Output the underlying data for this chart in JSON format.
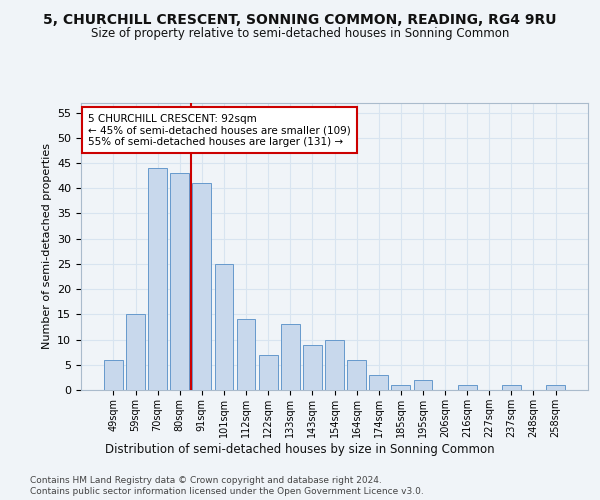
{
  "title": "5, CHURCHILL CRESCENT, SONNING COMMON, READING, RG4 9RU",
  "subtitle": "Size of property relative to semi-detached houses in Sonning Common",
  "xlabel": "Distribution of semi-detached houses by size in Sonning Common",
  "ylabel": "Number of semi-detached properties",
  "categories": [
    "49sqm",
    "59sqm",
    "70sqm",
    "80sqm",
    "91sqm",
    "101sqm",
    "112sqm",
    "122sqm",
    "133sqm",
    "143sqm",
    "154sqm",
    "164sqm",
    "174sqm",
    "185sqm",
    "195sqm",
    "206sqm",
    "216sqm",
    "227sqm",
    "237sqm",
    "248sqm",
    "258sqm"
  ],
  "values": [
    6,
    15,
    44,
    43,
    41,
    25,
    14,
    7,
    13,
    9,
    10,
    6,
    3,
    1,
    2,
    0,
    1,
    0,
    1,
    0,
    1
  ],
  "bar_color": "#c8d8ec",
  "bar_edge_color": "#6699cc",
  "vline_x": 3.5,
  "vline_color": "#cc0000",
  "annotation_text": "5 CHURCHILL CRESCENT: 92sqm\n← 45% of semi-detached houses are smaller (109)\n55% of semi-detached houses are larger (131) →",
  "annotation_box_facecolor": "#ffffff",
  "annotation_box_edgecolor": "#cc0000",
  "ylim": [
    0,
    57
  ],
  "yticks": [
    0,
    5,
    10,
    15,
    20,
    25,
    30,
    35,
    40,
    45,
    50,
    55
  ],
  "footer_line1": "Contains HM Land Registry data © Crown copyright and database right 2024.",
  "footer_line2": "Contains public sector information licensed under the Open Government Licence v3.0.",
  "bg_color": "#f0f4f8",
  "grid_color": "#d8e4f0"
}
